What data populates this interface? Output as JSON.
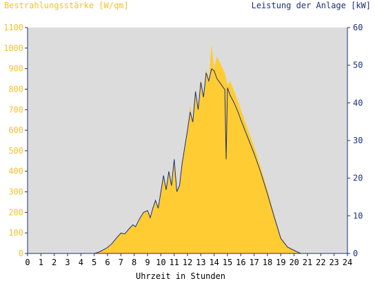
{
  "chart_data": {
    "type": "area",
    "y_left_label": "Bestrahlungsstärke [W/qm]",
    "y_right_label": "Leistung der Anlage [kW]",
    "xlabel": "Uhrzeit in Stunden",
    "x_range": [
      0,
      24
    ],
    "y_left_range": [
      0,
      1100
    ],
    "y_right_range": [
      0,
      60
    ],
    "x_ticks": [
      "0",
      "1",
      "2",
      "3",
      "4",
      "5",
      "6",
      "7",
      "8",
      "9",
      "10",
      "11",
      "12",
      "13",
      "14",
      "15",
      "16",
      "17",
      "18",
      "19",
      "20",
      "21",
      "22",
      "23",
      "24"
    ],
    "y_left_ticks": [
      "0",
      "100",
      "200",
      "300",
      "400",
      "500",
      "600",
      "700",
      "800",
      "900",
      "1000",
      "1100"
    ],
    "y_right_ticks": [
      "0",
      "10",
      "20",
      "30",
      "40",
      "50",
      "60"
    ],
    "grid": false,
    "colors": {
      "plot_background": "#dcdcdc",
      "irradiance_fill": "#ffcc33",
      "power_line": "#1a2f7a",
      "left_axis_text": "#f2c12e",
      "right_axis_text": "#1a2f7a"
    },
    "series": [
      {
        "name": "Bestrahlungsstärke [W/qm]",
        "axis": "left",
        "points": [
          [
            0,
            0
          ],
          [
            5,
            0
          ],
          [
            5.3,
            5
          ],
          [
            5.6,
            15
          ],
          [
            6,
            30
          ],
          [
            6.3,
            45
          ],
          [
            6.6,
            70
          ],
          [
            7,
            100
          ],
          [
            7.3,
            95
          ],
          [
            7.6,
            120
          ],
          [
            7.9,
            140
          ],
          [
            8.1,
            130
          ],
          [
            8.4,
            170
          ],
          [
            8.7,
            200
          ],
          [
            9,
            210
          ],
          [
            9.2,
            175
          ],
          [
            9.4,
            220
          ],
          [
            9.6,
            260
          ],
          [
            9.8,
            220
          ],
          [
            10,
            300
          ],
          [
            10.2,
            380
          ],
          [
            10.4,
            310
          ],
          [
            10.6,
            400
          ],
          [
            10.8,
            330
          ],
          [
            11,
            460
          ],
          [
            11.2,
            300
          ],
          [
            11.4,
            330
          ],
          [
            11.6,
            440
          ],
          [
            11.8,
            520
          ],
          [
            12,
            600
          ],
          [
            12.2,
            720
          ],
          [
            12.4,
            640
          ],
          [
            12.6,
            800
          ],
          [
            12.8,
            700
          ],
          [
            13,
            850
          ],
          [
            13.2,
            760
          ],
          [
            13.4,
            900
          ],
          [
            13.6,
            840
          ],
          [
            13.8,
            1020
          ],
          [
            14,
            900
          ],
          [
            14.2,
            960
          ],
          [
            14.5,
            920
          ],
          [
            14.8,
            880
          ],
          [
            15,
            820
          ],
          [
            15.2,
            840
          ],
          [
            15.5,
            790
          ],
          [
            15.8,
            740
          ],
          [
            16,
            700
          ],
          [
            16.5,
            610
          ],
          [
            17,
            520
          ],
          [
            17.5,
            420
          ],
          [
            18,
            310
          ],
          [
            18.5,
            190
          ],
          [
            19,
            80
          ],
          [
            19.5,
            35
          ],
          [
            20,
            15
          ],
          [
            20.5,
            0
          ],
          [
            24,
            0
          ]
        ]
      },
      {
        "name": "Leistung der Anlage [kW]",
        "axis": "right",
        "points": [
          [
            0,
            0
          ],
          [
            5,
            0
          ],
          [
            5.3,
            0.3
          ],
          [
            5.6,
            0.8
          ],
          [
            6,
            1.6
          ],
          [
            6.3,
            2.5
          ],
          [
            6.6,
            3.8
          ],
          [
            7,
            5.4
          ],
          [
            7.3,
            5.2
          ],
          [
            7.6,
            6.5
          ],
          [
            7.9,
            7.6
          ],
          [
            8.1,
            7.1
          ],
          [
            8.4,
            9.2
          ],
          [
            8.7,
            10.9
          ],
          [
            9,
            11.4
          ],
          [
            9.2,
            9.5
          ],
          [
            9.4,
            12
          ],
          [
            9.6,
            14.1
          ],
          [
            9.8,
            12
          ],
          [
            10,
            16.3
          ],
          [
            10.2,
            20.7
          ],
          [
            10.4,
            16.9
          ],
          [
            10.6,
            21.8
          ],
          [
            10.8,
            18
          ],
          [
            11,
            25
          ],
          [
            11.2,
            16.4
          ],
          [
            11.4,
            18
          ],
          [
            11.6,
            24
          ],
          [
            11.8,
            28.4
          ],
          [
            12,
            32.7
          ],
          [
            12.2,
            37.6
          ],
          [
            12.4,
            34.9
          ],
          [
            12.6,
            43
          ],
          [
            12.8,
            38.2
          ],
          [
            13,
            45.5
          ],
          [
            13.2,
            41.5
          ],
          [
            13.4,
            48
          ],
          [
            13.6,
            45.8
          ],
          [
            13.8,
            49
          ],
          [
            14,
            48.5
          ],
          [
            14.2,
            46.5
          ],
          [
            14.5,
            45
          ],
          [
            14.8,
            43.5
          ],
          [
            14.9,
            25
          ],
          [
            15,
            44
          ],
          [
            15.2,
            42
          ],
          [
            15.5,
            40
          ],
          [
            15.8,
            37.5
          ],
          [
            16,
            35.5
          ],
          [
            16.5,
            31
          ],
          [
            17,
            26.5
          ],
          [
            17.5,
            21.5
          ],
          [
            18,
            15.8
          ],
          [
            18.5,
            9.8
          ],
          [
            19,
            4
          ],
          [
            19.5,
            1.7
          ],
          [
            20,
            0.8
          ],
          [
            20.5,
            0
          ],
          [
            24,
            0
          ]
        ]
      }
    ]
  }
}
